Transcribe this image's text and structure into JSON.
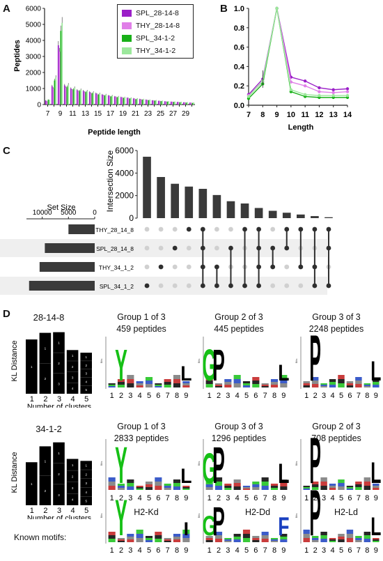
{
  "panels": {
    "A": "A",
    "B": "B",
    "C": "C",
    "D": "D"
  },
  "chart_data": [
    {
      "type": "bar",
      "panel": "A",
      "xlabel": "Peptide length",
      "ylabel": "Peptides",
      "ylim": [
        0,
        6000
      ],
      "yticks": [
        0,
        1000,
        2000,
        3000,
        4000,
        5000,
        6000
      ],
      "categories": [
        7,
        8,
        9,
        10,
        11,
        12,
        13,
        14,
        15,
        16,
        17,
        18,
        19,
        20,
        21,
        22,
        23,
        24,
        25,
        26,
        27,
        28,
        29,
        30
      ],
      "xtick_labels": [
        "7",
        "9",
        "11",
        "13",
        "15",
        "17",
        "19",
        "21",
        "23",
        "25",
        "27",
        "29"
      ],
      "legend_position": "top-right",
      "series": [
        {
          "name": "SPL_28-14-8",
          "color": "#9b1fc8",
          "values": [
            250,
            1150,
            3700,
            1200,
            1000,
            900,
            850,
            780,
            700,
            620,
            560,
            500,
            460,
            420,
            380,
            340,
            300,
            260,
            230,
            200,
            180,
            160,
            140,
            120
          ]
        },
        {
          "name": "THY_28-14-8",
          "color": "#e07fe8",
          "values": [
            200,
            1000,
            3300,
            1050,
            900,
            820,
            760,
            700,
            640,
            570,
            520,
            470,
            430,
            390,
            350,
            320,
            280,
            250,
            220,
            190,
            170,
            150,
            130,
            110
          ]
        },
        {
          "name": "SPL_34-1-2",
          "color": "#18b018",
          "values": [
            300,
            1500,
            4600,
            1100,
            950,
            850,
            780,
            700,
            620,
            560,
            500,
            450,
            410,
            370,
            330,
            300,
            270,
            240,
            210,
            180,
            160,
            140,
            120,
            100
          ]
        },
        {
          "name": "THY_34-1-2",
          "color": "#9ce89c",
          "values": [
            280,
            1700,
            5100,
            1250,
            1050,
            930,
            850,
            770,
            690,
            620,
            560,
            500,
            450,
            410,
            370,
            330,
            290,
            260,
            230,
            200,
            180,
            160,
            140,
            120
          ]
        }
      ]
    },
    {
      "type": "line",
      "panel": "B",
      "xlabel": "Length",
      "ylabel": "",
      "ylim": [
        0.0,
        1.0
      ],
      "yticks": [
        "0.0",
        "0.2",
        "0.4",
        "0.6",
        "0.8",
        "1.0"
      ],
      "x": [
        7,
        8,
        9,
        10,
        11,
        12,
        13,
        14
      ],
      "series": [
        {
          "color": "#9b1fc8",
          "values": [
            0.11,
            0.27,
            1.0,
            0.29,
            0.25,
            0.18,
            0.16,
            0.17
          ]
        },
        {
          "color": "#e07fe8",
          "values": [
            0.1,
            0.24,
            1.0,
            0.24,
            0.2,
            0.14,
            0.13,
            0.14
          ]
        },
        {
          "color": "#18b018",
          "values": [
            0.07,
            0.22,
            1.0,
            0.14,
            0.09,
            0.08,
            0.08,
            0.08
          ]
        },
        {
          "color": "#9ce89c",
          "values": [
            0.09,
            0.25,
            1.0,
            0.16,
            0.11,
            0.1,
            0.1,
            0.1
          ]
        }
      ]
    },
    {
      "type": "upset",
      "panel": "C",
      "ylabel": "Intersection Size",
      "ylim": [
        0,
        6000
      ],
      "yticks": [
        0,
        2000,
        4000,
        6000
      ],
      "set_size_label": "Set Size",
      "set_size_ticks": [
        "10000",
        "5000",
        "0"
      ],
      "sets": [
        "THY_28_14_8",
        "SPL_28_14_8",
        "THY_34_1_2",
        "SPL_34_1_2"
      ],
      "set_sizes": [
        5000,
        9500,
        10500,
        12500
      ],
      "intersection_sizes": [
        5450,
        3650,
        3050,
        2800,
        2600,
        2050,
        1500,
        1300,
        900,
        650,
        480,
        320,
        180,
        80
      ],
      "intersection_membership": [
        [
          3
        ],
        [
          2
        ],
        [
          1
        ],
        [
          0
        ],
        [
          3,
          2,
          1,
          0
        ],
        [
          2,
          3
        ],
        [
          1,
          3
        ],
        [
          0,
          3
        ],
        [
          0,
          1,
          2,
          3
        ],
        [
          1,
          2
        ],
        [
          0,
          1
        ],
        [
          0,
          2
        ],
        [
          0,
          2,
          3
        ],
        [
          1,
          3,
          0
        ]
      ]
    }
  ],
  "panelD": {
    "row1_label": "28-14-8",
    "row2_label": "34-1-2",
    "kl_ylabel": "KL Distance",
    "kl_xlabel": "Number of clusters",
    "kl_xticks": [
      "1",
      "2",
      "3",
      "4",
      "5"
    ],
    "row1_kl_heights": [
      0.82,
      0.92,
      0.93,
      0.66,
      0.62
    ],
    "row2_kl_heights": [
      0.65,
      0.89,
      0.95,
      0.7,
      0.67
    ],
    "groups_row1": [
      {
        "title": "Group 1 of 3",
        "count": "459 peptides"
      },
      {
        "title": "Group 2 of 3",
        "count": "445 peptides"
      },
      {
        "title": "Group 3 of 3",
        "count": "2248 peptides"
      }
    ],
    "groups_row2": [
      {
        "title": "Group 1 of 3",
        "count": "2833 peptides"
      },
      {
        "title": "Group 3 of 3",
        "count": "1296 peptides"
      },
      {
        "title": "Group 2 of 3",
        "count": "708 peptides"
      }
    ],
    "known_motifs_label": "Known motifs:",
    "known_motifs": [
      "H2-Kd",
      "H2-Dd",
      "H2-Ld"
    ],
    "logo_positions": [
      "1",
      "2",
      "3",
      "4",
      "5",
      "6",
      "7",
      "8",
      "9"
    ],
    "logo_ylabel": "Bits"
  }
}
